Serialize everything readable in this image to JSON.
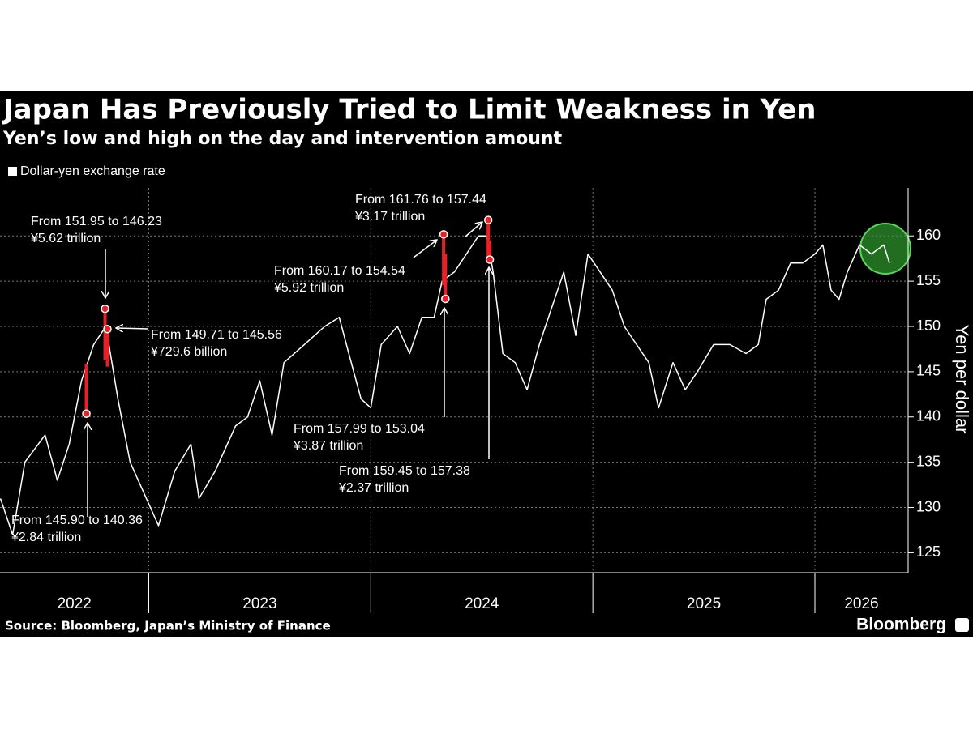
{
  "chart_data": {
    "type": "line",
    "title": "Japan Has Previously Tried to Limit Weakness in Yen",
    "subtitle": "Yen’s low and high on the day and intervention amount",
    "y_label": "Yen per dollar",
    "source": "Source: Bloomberg, Japan’s Ministry of Finance",
    "brand": "Bloomberg",
    "xlim": [
      2022.33,
      2026.42
    ],
    "xticks": [
      {
        "value": 2022,
        "label": "2022"
      },
      {
        "value": 2023,
        "label": "2023"
      },
      {
        "value": 2024,
        "label": "2024"
      },
      {
        "value": 2025,
        "label": "2025"
      },
      {
        "value": 2026,
        "label": "2026"
      }
    ],
    "ylim": [
      122.8,
      165.3
    ],
    "yticks": [
      125,
      130,
      135,
      140,
      145,
      150,
      155,
      160
    ],
    "grid": true,
    "series": [
      {
        "name": "Dollar-yen exchange rate",
        "color": "#ffffff",
        "x": [
          2022.332,
          2022.387,
          2022.442,
          2022.533,
          2022.588,
          2022.642,
          2022.697,
          2022.752,
          2022.807,
          2022.861,
          2022.916,
          2022.971,
          2023.044,
          2023.117,
          2023.19,
          2023.226,
          2023.299,
          2023.391,
          2023.445,
          2023.5,
          2023.555,
          2023.609,
          2023.701,
          2023.792,
          2023.858,
          2023.901,
          2023.956,
          2024.0,
          2024.047,
          2024.12,
          2024.175,
          2024.23,
          2024.285,
          2024.321,
          2024.376,
          2024.431,
          2024.485,
          2024.522,
          2024.551,
          2024.595,
          2024.65,
          2024.704,
          2024.759,
          2024.814,
          2024.869,
          2024.923,
          2024.978,
          2025.033,
          2025.088,
          2025.142,
          2025.197,
          2025.252,
          2025.296,
          2025.361,
          2025.416,
          2025.471,
          2025.544,
          2025.617,
          2025.69,
          2025.745,
          2025.781,
          2025.836,
          2025.891,
          2025.945,
          2026.0,
          2026.036,
          2026.073,
          2026.109,
          2026.146,
          2026.201,
          2026.255,
          2026.31,
          2026.336
        ],
        "values": [
          131,
          127,
          135,
          138,
          133,
          137,
          144,
          148,
          150,
          142,
          135,
          132,
          128,
          134,
          137,
          131,
          134,
          139,
          140,
          144,
          138,
          146,
          148,
          150,
          151,
          147,
          142,
          141,
          148,
          150,
          147,
          151,
          151,
          155,
          156,
          158,
          160,
          160,
          156,
          147,
          146,
          143,
          148,
          152,
          156,
          149,
          158,
          156,
          154,
          150,
          148,
          146,
          141,
          146,
          143,
          145,
          148,
          148,
          147,
          148,
          153,
          154,
          157,
          157,
          158,
          159,
          154,
          153,
          156,
          159,
          158,
          159,
          157
        ]
      }
    ],
    "interventions": [
      {
        "x": 2022.719,
        "high": 145.9,
        "low": 140.36,
        "label": "From 145.90 to 140.36",
        "amount": "¥2.84 trillion"
      },
      {
        "x": 2022.803,
        "high": 151.95,
        "low": 146.23,
        "label": "From 151.95 to 146.23",
        "amount": "¥5.62 trillion"
      },
      {
        "x": 2022.814,
        "high": 149.71,
        "low": 145.56,
        "label": "From 149.71 to 145.56",
        "amount": "¥729.6 billion"
      },
      {
        "x": 2024.328,
        "high": 160.17,
        "low": 154.54,
        "label": "From 160.17 to 154.54",
        "amount": "¥5.92 trillion"
      },
      {
        "x": 2024.336,
        "high": 157.99,
        "low": 153.04,
        "label": "From 157.99 to 153.04",
        "amount": "¥3.87 trillion"
      },
      {
        "x": 2024.529,
        "high": 161.76,
        "low": 157.44,
        "label": "From 161.76 to 157.44",
        "amount": "¥3.17 trillion"
      },
      {
        "x": 2024.536,
        "high": 159.45,
        "low": 157.38,
        "label": "From 159.45 to 157.38",
        "amount": "¥2.37 trillion"
      }
    ],
    "intervention_color": "#e8202a"
  }
}
